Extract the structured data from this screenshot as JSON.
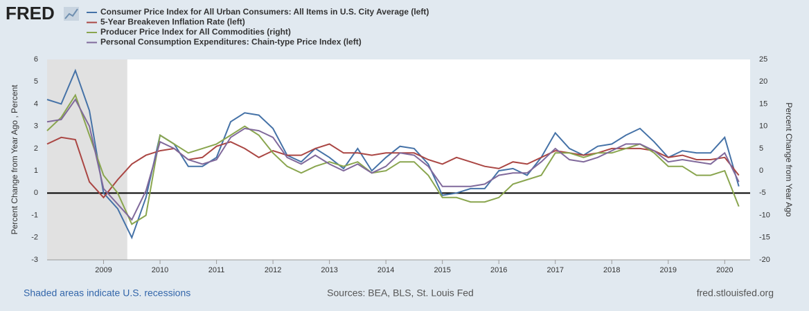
{
  "logo": "FRED",
  "footer": {
    "left": "Shaded areas indicate U.S. recessions",
    "center": "Sources: BEA, BLS, St. Louis Fed",
    "right": "fred.stlouisfed.org"
  },
  "chart_data": {
    "type": "line",
    "ylabel": "Percent Change from Year Ago , Percent",
    "y2label": "Percent Change from Year Ago",
    "x": [
      2008.0,
      2008.25,
      2008.5,
      2008.75,
      2009.0,
      2009.25,
      2009.5,
      2009.75,
      2010.0,
      2010.25,
      2010.5,
      2010.75,
      2011.0,
      2011.25,
      2011.5,
      2011.75,
      2012.0,
      2012.25,
      2012.5,
      2012.75,
      2013.0,
      2013.25,
      2013.5,
      2013.75,
      2014.0,
      2014.25,
      2014.5,
      2014.75,
      2015.0,
      2015.25,
      2015.5,
      2015.75,
      2016.0,
      2016.25,
      2016.5,
      2016.75,
      2017.0,
      2017.25,
      2017.5,
      2017.75,
      2018.0,
      2018.25,
      2018.5,
      2018.75,
      2019.0,
      2019.25,
      2019.5,
      2019.75,
      2020.0,
      2020.25
    ],
    "xlim": [
      2008.0,
      2020.45
    ],
    "xticks": [
      2009,
      2010,
      2011,
      2012,
      2013,
      2014,
      2015,
      2016,
      2017,
      2018,
      2019,
      2020
    ],
    "ylim": [
      -3,
      6
    ],
    "yticks": [
      -3,
      -2,
      -1,
      0,
      1,
      2,
      3,
      4,
      5,
      6
    ],
    "y2lim": [
      -20,
      25
    ],
    "y2ticks": [
      -20,
      -15,
      -10,
      -5,
      0,
      5,
      10,
      15,
      20,
      25
    ],
    "recessions": [
      [
        2008.0,
        2009.42
      ]
    ],
    "series": [
      {
        "name": "Consumer Price Index for All Urban Consumers: All Items in U.S. City Average (left)",
        "color": "#4572a7",
        "values": [
          4.2,
          4.0,
          5.5,
          3.7,
          0.0,
          -0.7,
          -2.0,
          -0.2,
          2.6,
          2.2,
          1.2,
          1.2,
          1.6,
          3.2,
          3.6,
          3.5,
          2.9,
          1.7,
          1.4,
          2.0,
          1.6,
          1.1,
          2.0,
          1.0,
          1.6,
          2.1,
          2.0,
          1.3,
          -0.1,
          0.0,
          0.2,
          0.2,
          1.0,
          1.1,
          0.8,
          1.6,
          2.7,
          2.0,
          1.7,
          2.1,
          2.2,
          2.6,
          2.9,
          2.3,
          1.6,
          1.9,
          1.8,
          1.8,
          2.5,
          0.3
        ]
      },
      {
        "name": "5-Year Breakeven Inflation Rate (left)",
        "color": "#aa4643",
        "values": [
          2.2,
          2.5,
          2.4,
          0.5,
          -0.2,
          0.6,
          1.3,
          1.7,
          1.9,
          2.0,
          1.5,
          1.6,
          2.1,
          2.3,
          2.0,
          1.6,
          1.9,
          1.7,
          1.7,
          2.0,
          2.2,
          1.8,
          1.8,
          1.7,
          1.8,
          1.8,
          1.8,
          1.5,
          1.3,
          1.6,
          1.4,
          1.2,
          1.1,
          1.4,
          1.3,
          1.6,
          1.9,
          1.8,
          1.7,
          1.8,
          2.0,
          2.0,
          2.0,
          1.9,
          1.6,
          1.7,
          1.5,
          1.5,
          1.6,
          0.8
        ]
      },
      {
        "name": "Producer Price Index for All Commodities (right)",
        "color": "#89a54e",
        "axis": "y2",
        "values": [
          9,
          12,
          17,
          8,
          -1,
          -5,
          -12,
          -10,
          8,
          6,
          4,
          5,
          6,
          8,
          10,
          8,
          4,
          1,
          -0.5,
          1,
          2,
          1,
          2,
          -0.5,
          0,
          2,
          2,
          -1,
          -6,
          -6,
          -7,
          -7,
          -6,
          -3,
          -2,
          -1,
          4,
          4,
          3,
          4,
          4,
          5,
          6,
          4,
          1,
          1,
          -1,
          -1,
          0,
          -8
        ]
      },
      {
        "name": "Personal Consumption Expenditures: Chain-type Price Index (left)",
        "color": "#80699b",
        "values": [
          3.2,
          3.3,
          4.2,
          3.0,
          0.2,
          -0.5,
          -1.2,
          0.1,
          2.3,
          2.0,
          1.5,
          1.3,
          1.5,
          2.5,
          2.9,
          2.8,
          2.5,
          1.6,
          1.3,
          1.7,
          1.3,
          1.0,
          1.3,
          0.9,
          1.2,
          1.8,
          1.7,
          1.2,
          0.3,
          0.3,
          0.3,
          0.4,
          0.8,
          0.9,
          0.9,
          1.4,
          2.0,
          1.5,
          1.4,
          1.6,
          1.9,
          2.2,
          2.2,
          1.9,
          1.4,
          1.5,
          1.4,
          1.3,
          1.8,
          0.5
        ]
      }
    ]
  }
}
